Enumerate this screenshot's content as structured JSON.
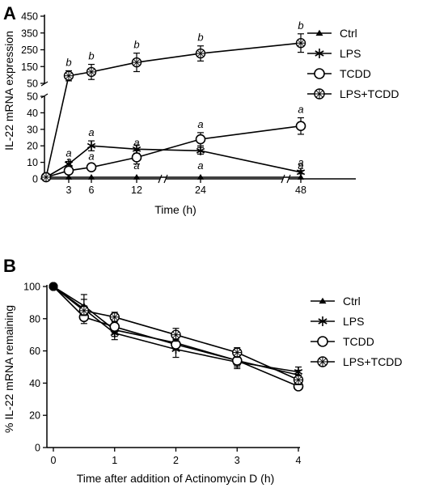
{
  "chart_data": [
    {
      "panel_label": "A",
      "type": "line",
      "xlabel": "Time (h)",
      "ylabel": "IL-22 mRNA expression",
      "x": [
        0,
        3,
        6,
        12,
        24,
        48
      ],
      "x_ticks": [
        "3",
        "6",
        "12",
        "24",
        "48"
      ],
      "x_axis_breaks": [
        [
          13,
          22
        ],
        [
          25,
          46
        ]
      ],
      "y_axis_segments": [
        {
          "ylim": [
            0,
            50
          ],
          "ticks": [
            "0",
            "10",
            "20",
            "30",
            "40",
            "50"
          ]
        },
        {
          "ylim": [
            50,
            450
          ],
          "ticks": [
            "50",
            "150",
            "250",
            "350",
            "450"
          ]
        }
      ],
      "series": [
        {
          "name": "Ctrl",
          "marker": "filled-triangle",
          "values": [
            1,
            1,
            1,
            1,
            1,
            1
          ],
          "errors": [
            0,
            0,
            0,
            0,
            0,
            0
          ],
          "sig_labels": [
            "",
            "a",
            "a",
            "a",
            "a",
            "a"
          ]
        },
        {
          "name": "LPS",
          "marker": "asterisk",
          "values": [
            1,
            9,
            20,
            18,
            17,
            4
          ],
          "errors": [
            0,
            1.5,
            3,
            2.5,
            2,
            1
          ],
          "sig_labels": [
            "",
            "a",
            "a",
            "",
            "",
            "a"
          ]
        },
        {
          "name": "TCDD",
          "marker": "open-circle",
          "values": [
            1,
            5,
            7,
            13,
            24,
            32
          ],
          "errors": [
            0,
            1,
            1.5,
            4,
            4,
            5
          ],
          "sig_labels": [
            "",
            "a",
            "a",
            "a",
            "a",
            "a"
          ]
        },
        {
          "name": "LPS+TCDD",
          "marker": "circle-cross",
          "values": [
            1,
            95,
            118,
            175,
            228,
            290
          ],
          "errors": [
            0,
            30,
            45,
            55,
            45,
            55
          ],
          "sig_labels": [
            "",
            "b",
            "b",
            "b",
            "b",
            "b"
          ]
        }
      ],
      "legend_position": "right"
    },
    {
      "panel_label": "B",
      "type": "line",
      "xlabel": "Time after addition of Actinomycin D (h)",
      "ylabel": "% IL-22 mRNA remaining",
      "x": [
        0,
        0.5,
        1,
        2,
        3,
        4
      ],
      "xlim": [
        0,
        4
      ],
      "ylim": [
        0,
        100
      ],
      "x_ticks": [
        "0",
        "1",
        "2",
        "3",
        "4"
      ],
      "y_ticks": [
        "0",
        "20",
        "40",
        "60",
        "80",
        "100"
      ],
      "series": [
        {
          "name": "Ctrl",
          "marker": "filled-triangle",
          "values": [
            100,
            88,
            73,
            65,
            54,
            45
          ],
          "errors": [
            0,
            4,
            4,
            4,
            3,
            3
          ]
        },
        {
          "name": "LPS",
          "marker": "asterisk",
          "values": [
            100,
            86,
            71,
            61,
            53,
            47
          ],
          "errors": [
            0,
            9,
            4,
            5,
            4,
            3
          ]
        },
        {
          "name": "TCDD",
          "marker": "open-circle",
          "values": [
            100,
            81,
            75,
            64,
            54,
            38
          ],
          "errors": [
            0,
            2,
            4,
            3,
            4,
            2
          ]
        },
        {
          "name": "LPS+TCDD",
          "marker": "circle-cross",
          "values": [
            100,
            85,
            81,
            70,
            59,
            42
          ],
          "errors": [
            0,
            3,
            3,
            4,
            3,
            3
          ]
        }
      ],
      "legend_position": "right"
    }
  ]
}
